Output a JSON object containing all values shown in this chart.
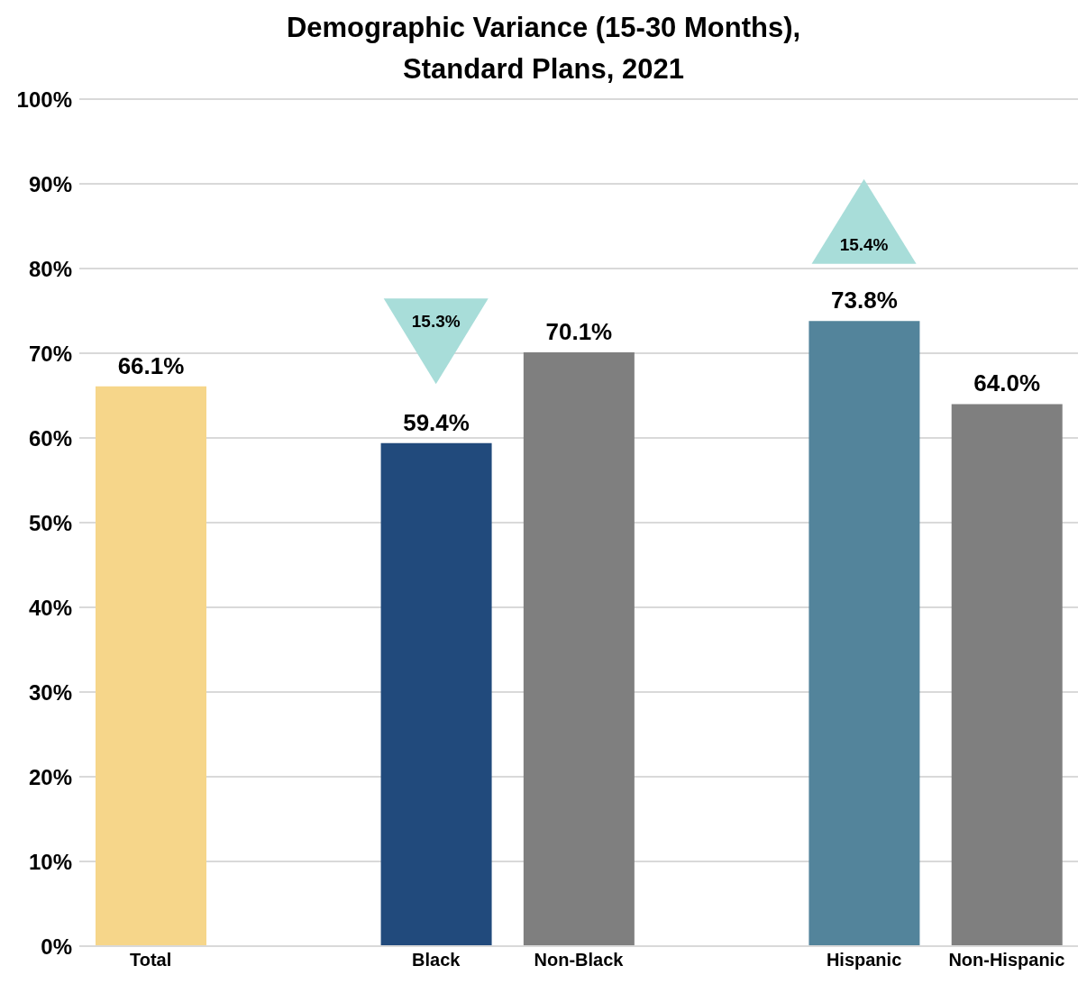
{
  "chart_data": {
    "type": "bar",
    "title": "Demographic Variance (15-30 Months),\nStandard Plans, 2021",
    "categories": [
      "Total",
      null,
      "Black",
      "Non-Black",
      null,
      "Hispanic",
      "Non-Hispanic"
    ],
    "values": [
      66.1,
      null,
      59.4,
      70.1,
      null,
      73.8,
      64.0
    ],
    "colors": [
      "#f6d68a",
      "#ffffff",
      "#214a7c",
      "#7f7f7f",
      "#ffffff",
      "#53849b",
      "#7f7f7f"
    ],
    "value_labels": [
      "66.1%",
      null,
      "59.4%",
      "70.1%",
      null,
      "73.8%",
      "64.0%"
    ],
    "ylim": [
      0,
      100
    ],
    "yticks": [
      {
        "value": 0,
        "label": "0%"
      },
      {
        "value": 10,
        "label": "10%"
      },
      {
        "value": 20,
        "label": "20%"
      },
      {
        "value": 30,
        "label": "30%"
      },
      {
        "value": 40,
        "label": "40%"
      },
      {
        "value": 50,
        "label": "50%"
      },
      {
        "value": 60,
        "label": "60%"
      },
      {
        "value": 70,
        "label": "70%"
      },
      {
        "value": 80,
        "label": "80%"
      },
      {
        "value": 90,
        "label": "90%"
      },
      {
        "value": 100,
        "label": "100%"
      }
    ],
    "grid": "y",
    "legend": false,
    "annotations": [
      "15.3%",
      "15.4%"
    ]
  }
}
